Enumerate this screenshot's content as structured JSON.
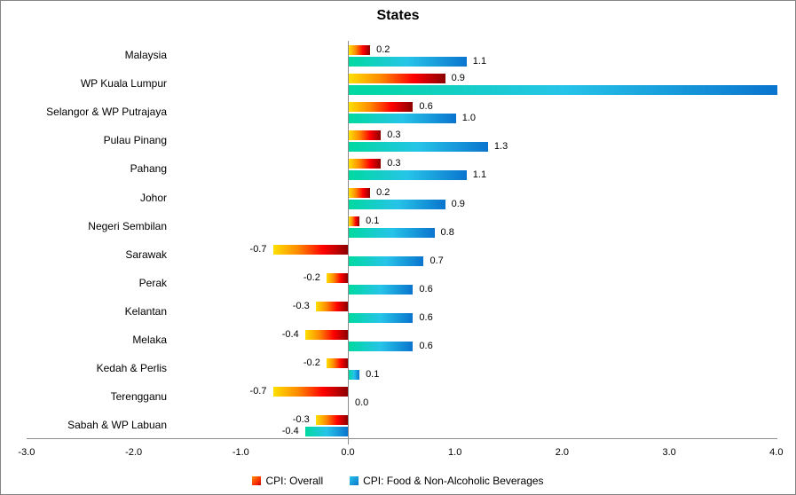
{
  "chart_data": {
    "type": "bar",
    "orientation": "horizontal",
    "title": "States",
    "categories": [
      "Malaysia",
      "WP Kuala Lumpur",
      "Selangor & WP Putrajaya",
      "Pulau Pinang",
      "Pahang",
      "Johor",
      "Negeri Sembilan",
      "Sarawak",
      "Perak",
      "Kelantan",
      "Melaka",
      "Kedah & Perlis",
      "Terengganu",
      "Sabah & WP Labuan"
    ],
    "series": [
      {
        "name": "CPI: Overall",
        "gradient": [
          "#ffe000",
          "#ff8a00",
          "#ff0000",
          "#8b0000"
        ],
        "values": [
          0.2,
          0.9,
          0.6,
          0.3,
          0.3,
          0.2,
          0.1,
          -0.7,
          -0.2,
          -0.3,
          -0.4,
          -0.2,
          -0.7,
          -0.3
        ],
        "labels": [
          "0.2",
          "0.9",
          "0.6",
          "0.3",
          "0.3",
          "0.2",
          "0.1",
          "-0.7",
          "-0.2",
          "-0.3",
          "-0.4",
          "-0.2",
          "-0.7",
          "-0.3"
        ]
      },
      {
        "name": "CPI: Food & Non-Alcoholic Beverages",
        "gradient": [
          "#00d9a0",
          "#26c4e8",
          "#0a74ce"
        ],
        "values": [
          1.1,
          4.0,
          1.0,
          1.3,
          1.1,
          0.9,
          0.8,
          0.7,
          0.6,
          0.6,
          0.6,
          0.1,
          0.0,
          -0.4
        ],
        "labels": [
          "1.1",
          "",
          "1.0",
          "1.3",
          "1.1",
          "0.9",
          "0.8",
          "0.7",
          "0.6",
          "0.6",
          "0.6",
          "0.1",
          "0.0",
          "-0.4"
        ]
      }
    ],
    "xlim": [
      -3.0,
      4.0
    ],
    "xticks": [
      "-3.0",
      "-2.0",
      "-1.0",
      "0.0",
      "1.0",
      "2.0",
      "3.0",
      "4.0"
    ],
    "grid": false,
    "legend_position": "bottom"
  }
}
